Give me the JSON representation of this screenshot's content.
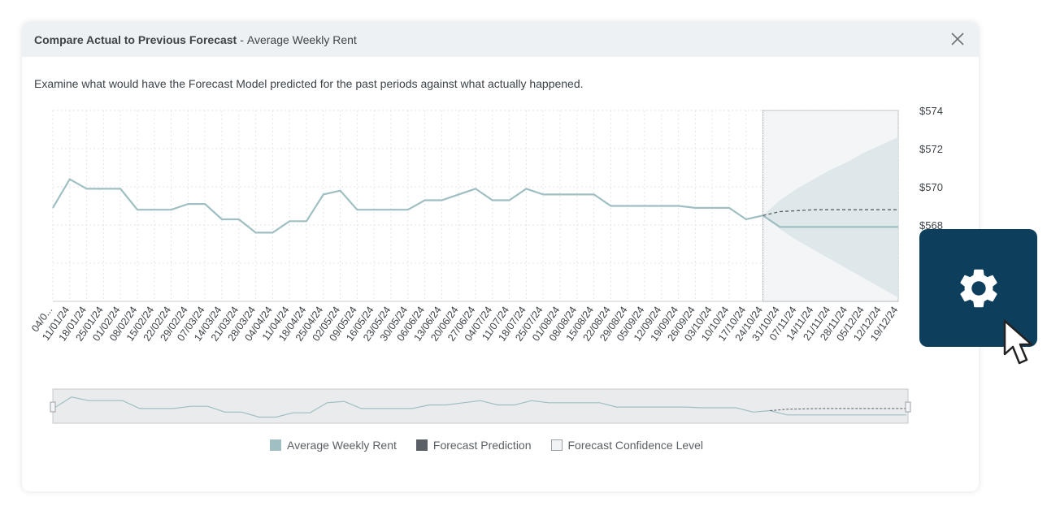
{
  "dialog": {
    "title_bold": "Compare Actual to Previous Forecast",
    "title_separator": "-",
    "title_rest": "Average Weekly Rent",
    "description": "Examine what would have the Forecast Model predicted for the past periods against what actually happened."
  },
  "icons": {
    "close": "close-icon",
    "settings": "gear-icon",
    "cursor": "pointer-cursor-icon"
  },
  "colors": {
    "actual": "#9fbfc2",
    "forecast": "#5a6066",
    "confidence": "#e6ecee",
    "settings_bg": "#0d3f5c"
  },
  "legend": [
    {
      "label": "Average Weekly Rent",
      "swatch": "#9fbfc2",
      "border": "#9fbfc2"
    },
    {
      "label": "Forecast Prediction",
      "swatch": "#5a6066",
      "border": "#5a6066"
    },
    {
      "label": "Forecast Confidence Level",
      "swatch": "#f1f3f4",
      "border": "#9aa0a6"
    }
  ],
  "chart_data": {
    "type": "line",
    "x": [
      "04/0...",
      "11/01/24",
      "18/01/24",
      "25/01/24",
      "01/02/24",
      "08/02/24",
      "15/02/24",
      "22/02/24",
      "29/02/24",
      "07/03/24",
      "14/03/24",
      "21/03/24",
      "28/03/24",
      "04/04/24",
      "11/04/24",
      "18/04/24",
      "25/04/24",
      "02/05/24",
      "09/05/24",
      "16/05/24",
      "23/05/24",
      "30/05/24",
      "06/06/24",
      "13/06/24",
      "20/06/24",
      "27/06/24",
      "04/07/24",
      "11/07/24",
      "18/07/24",
      "25/07/24",
      "01/08/24",
      "08/08/24",
      "15/08/24",
      "22/08/24",
      "29/08/24",
      "05/09/24",
      "12/09/24",
      "19/09/24",
      "26/09/24",
      "03/10/24",
      "10/10/24",
      "17/10/24",
      "24/10/24",
      "31/10/24",
      "07/11/24",
      "14/11/24",
      "21/11/24",
      "28/11/24",
      "05/12/24",
      "12/12/24",
      "19/12/24"
    ],
    "y_ticks": [
      "$574",
      "$572",
      "$570",
      "$568"
    ],
    "ylim": [
      564,
      574
    ],
    "series": [
      {
        "name": "Average Weekly Rent",
        "values": [
          568.9,
          570.4,
          569.9,
          569.9,
          569.9,
          568.8,
          568.8,
          568.8,
          569.1,
          569.1,
          568.3,
          568.3,
          567.6,
          567.6,
          568.2,
          568.2,
          569.6,
          569.8,
          568.8,
          568.8,
          568.8,
          568.8,
          569.3,
          569.3,
          569.6,
          569.9,
          569.3,
          569.3,
          569.9,
          569.6,
          569.6,
          569.6,
          569.6,
          569.0,
          569.0,
          569.0,
          569.0,
          569.0,
          568.9,
          568.9,
          568.9,
          568.3,
          568.5,
          567.9,
          567.9,
          567.9,
          567.9,
          567.9,
          567.9,
          567.9,
          567.9
        ]
      },
      {
        "name": "Forecast Prediction",
        "values": [
          null,
          null,
          null,
          null,
          null,
          null,
          null,
          null,
          null,
          null,
          null,
          null,
          null,
          null,
          null,
          null,
          null,
          null,
          null,
          null,
          null,
          null,
          null,
          null,
          null,
          null,
          null,
          null,
          null,
          null,
          null,
          null,
          null,
          null,
          null,
          null,
          null,
          null,
          null,
          null,
          null,
          null,
          568.5,
          568.7,
          568.75,
          568.8,
          568.8,
          568.8,
          568.8,
          568.8,
          568.8
        ]
      },
      {
        "name": "Forecast Confidence Level",
        "upper": [
          568.5,
          569.3,
          569.9,
          570.4,
          570.9,
          571.3,
          571.8,
          572.2,
          572.6
        ],
        "lower": [
          568.5,
          567.8,
          567.2,
          566.7,
          566.2,
          565.7,
          565.2,
          564.7,
          564.2
        ]
      }
    ],
    "forecast_start_index": 42,
    "grid": true,
    "y_axis_side": "right",
    "legend_position": "bottom",
    "navigator": true
  }
}
